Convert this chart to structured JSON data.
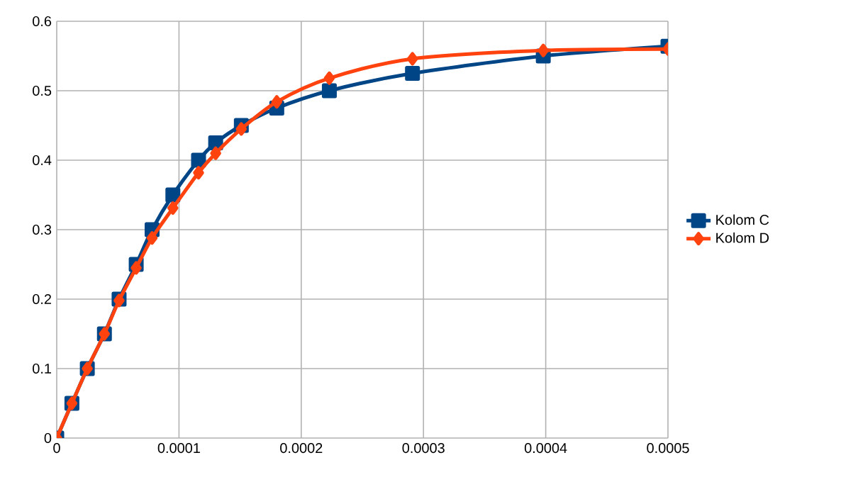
{
  "chart_data": {
    "type": "line",
    "x": [
      0,
      1.24e-05,
      2.5e-05,
      3.9e-05,
      5.1e-05,
      6.5e-05,
      7.8e-05,
      9.5e-05,
      0.000116,
      0.00013,
      0.000151,
      0.00018,
      0.000223,
      0.000291,
      0.000398,
      0.0005
    ],
    "series": [
      {
        "name": "Kolom C",
        "color": "#004586",
        "marker": "square",
        "values": [
          0,
          0.05,
          0.1,
          0.15,
          0.2,
          0.25,
          0.3,
          0.35,
          0.4,
          0.425,
          0.45,
          0.475,
          0.5,
          0.525,
          0.55,
          0.564
        ]
      },
      {
        "name": "Kolom D",
        "color": "#ff420e",
        "marker": "diamond",
        "values": [
          0,
          0.05,
          0.1,
          0.15,
          0.198,
          0.245,
          0.288,
          0.331,
          0.382,
          0.41,
          0.445,
          0.484,
          0.518,
          0.546,
          0.558,
          0.56
        ]
      }
    ],
    "xlim": [
      0,
      0.0005
    ],
    "xticks": [
      0,
      0.0001,
      0.0002,
      0.0003,
      0.0004,
      0.0005
    ],
    "ylim": [
      0,
      0.6
    ],
    "yticks": [
      0,
      0.1,
      0.2,
      0.3,
      0.4,
      0.5,
      0.6
    ],
    "grid": true,
    "legend": "right"
  }
}
